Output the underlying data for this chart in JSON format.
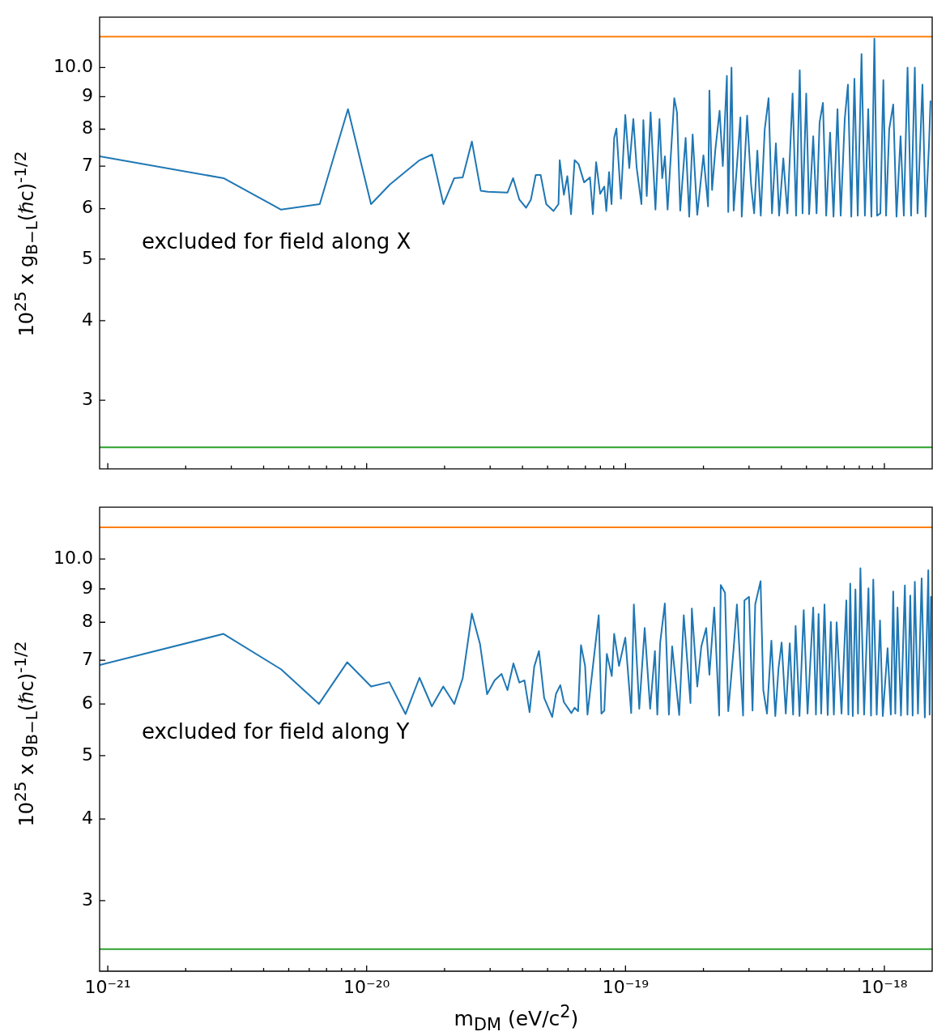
{
  "chart_data": [
    {
      "type": "line",
      "ylabel": "10$^{25}$ x g$_{B−L}$(ℏc)$^{-1/2}$",
      "annotations": [
        "excluded for field along X"
      ],
      "log": "xy",
      "tick_labels": "y",
      "xlim": [
        9.3e-22,
        1.53e-18
      ],
      "ylim": [
        2.34,
        12.0
      ],
      "xticks": [
        {
          "value": 1e-21,
          "label": null
        },
        {
          "value": 2e-21,
          "label": null
        },
        {
          "value": 3e-21,
          "label": null
        },
        {
          "value": 4e-21,
          "label": null
        },
        {
          "value": 5e-21,
          "label": null
        },
        {
          "value": 6e-21,
          "label": null
        },
        {
          "value": 7e-21,
          "label": null
        },
        {
          "value": 8e-21,
          "label": null
        },
        {
          "value": 9e-21,
          "label": null
        },
        {
          "value": 1e-20,
          "label": null
        },
        {
          "value": 2e-20,
          "label": null
        },
        {
          "value": 3e-20,
          "label": null
        },
        {
          "value": 4e-20,
          "label": null
        },
        {
          "value": 5e-20,
          "label": null
        },
        {
          "value": 6e-20,
          "label": null
        },
        {
          "value": 7e-20,
          "label": null
        },
        {
          "value": 8e-20,
          "label": null
        },
        {
          "value": 9e-20,
          "label": null
        },
        {
          "value": 1e-19,
          "label": null
        },
        {
          "value": 2e-19,
          "label": null
        },
        {
          "value": 3e-19,
          "label": null
        },
        {
          "value": 4e-19,
          "label": null
        },
        {
          "value": 5e-19,
          "label": null
        },
        {
          "value": 6e-19,
          "label": null
        },
        {
          "value": 7e-19,
          "label": null
        },
        {
          "value": 8e-19,
          "label": null
        },
        {
          "value": 9e-19,
          "label": null
        },
        {
          "value": 1e-18,
          "label": null
        }
      ],
      "yticks": [
        3,
        4,
        5,
        6,
        7,
        8,
        9,
        {
          "value": 10,
          "label": "10.0"
        }
      ],
      "ref_lines": [
        {
          "axis": "y",
          "value": 11.18,
          "color": "#ff7f0e"
        },
        {
          "axis": "y",
          "value": 2.53,
          "color": "#2ca02c"
        }
      ],
      "series": [
        {
          "color": "#1f77b4",
          "x": [
            9.3e-22,
            2.8e-21,
            4.67e-21,
            6.59e-21,
            8.47e-21,
            1.04e-20,
            1.23e-20,
            1.6e-20,
            1.79e-20,
            1.98e-20,
            2.18e-20,
            2.35e-20,
            2.55e-20,
            2.76e-20,
            2.94e-20,
            3.5e-20,
            3.68e-20,
            3.89e-20,
            4.13e-20,
            4.31e-20,
            4.5e-20,
            4.7e-20,
            4.94e-20,
            5.27e-20,
            5.51e-20,
            5.57e-20,
            5.78e-20,
            5.96e-20,
            6.16e-20,
            6.36e-20,
            6.59e-20,
            6.92e-20,
            7.29e-20,
            7.48e-20,
            7.7e-20,
            7.98e-20,
            8.28e-20,
            8.43e-20,
            8.64e-20,
            8.83e-20,
            9.04e-20,
            9.22e-20,
            9.6e-20,
            9.98e-20,
            1.034e-19,
            1.072e-19,
            1.104e-19,
            1.152e-19,
            1.172e-19,
            1.208e-19,
            1.25e-19,
            1.305e-19,
            1.353e-19,
            1.386e-19,
            1.42e-19,
            1.454e-19,
            1.543e-19,
            1.581e-19,
            1.627e-19,
            1.707e-19,
            1.762e-19,
            1.817e-19,
            1.893e-19,
            2e-19,
            2.084e-19,
            2.109e-19,
            2.16e-19,
            2.223e-19,
            2.309e-19,
            2.376e-19,
            2.464e-19,
            2.494e-19,
            2.567e-19,
            2.617e-19,
            2.779e-19,
            2.812e-19,
            2.95e-19,
            3.058e-19,
            3.14e-19,
            3.23e-19,
            3.33e-19,
            3.45e-19,
            3.57e-19,
            3.68e-19,
            3.81e-19,
            3.92e-19,
            4.07e-19,
            4.22e-19,
            4.42e-19,
            4.56e-19,
            4.71e-19,
            4.83e-19,
            4.99e-19,
            5.12e-19,
            5.31e-19,
            5.47e-19,
            5.62e-19,
            5.79e-19,
            5.96e-19,
            6.17e-19,
            6.36e-19,
            6.59e-19,
            6.78e-19,
            7.03e-19,
            7.23e-19,
            7.45e-19,
            7.66e-19,
            7.89e-19,
            8.16e-19,
            8.41e-19,
            8.66e-19,
            8.91e-19,
            9.15e-19,
            9.37e-19,
            9.65e-19,
            9.91e-19,
            1.015e-18,
            1.044e-18,
            1.082e-18,
            1.114e-18,
            1.155e-18,
            1.189e-18,
            1.229e-18,
            1.268e-18,
            1.311e-18,
            1.343e-18,
            1.403e-18,
            1.443e-18,
            1.486e-18,
            1.507e-18
          ],
          "values": [
            7.25,
            6.7,
            5.98,
            6.1,
            8.6,
            6.1,
            6.55,
            7.15,
            7.3,
            6.1,
            6.7,
            6.72,
            7.65,
            6.4,
            6.38,
            6.36,
            6.7,
            6.2,
            6.02,
            6.2,
            6.78,
            6.78,
            6.1,
            5.95,
            6.1,
            7.15,
            6.31,
            6.75,
            5.88,
            7.15,
            7.05,
            6.6,
            6.72,
            5.88,
            7.1,
            6.33,
            6.5,
            5.95,
            6.85,
            6.1,
            7.75,
            8.02,
            6.22,
            8.42,
            6.95,
            8.3,
            6.97,
            6.1,
            8.27,
            6.28,
            8.5,
            5.98,
            8.3,
            6.7,
            7.25,
            5.98,
            8.95,
            8.5,
            5.96,
            7.75,
            5.83,
            7.85,
            5.87,
            7.28,
            6.05,
            9.2,
            6.42,
            7.42,
            8.55,
            7.0,
            9.7,
            5.93,
            10.0,
            5.96,
            8.35,
            5.83,
            8.4,
            6.52,
            5.9,
            7.4,
            5.85,
            8.0,
            8.95,
            5.9,
            7.6,
            5.85,
            7.2,
            5.9,
            9.1,
            5.85,
            9.9,
            5.9,
            9.1,
            5.88,
            7.8,
            5.9,
            8.2,
            8.8,
            5.85,
            7.9,
            5.83,
            8.6,
            5.85,
            8.3,
            9.4,
            5.83,
            9.6,
            5.85,
            10.5,
            5.85,
            8.6,
            5.83,
            11.1,
            5.85,
            5.9,
            9.55,
            5.85,
            8.0,
            8.75,
            5.83,
            7.8,
            5.85,
            10.0,
            5.85,
            10.0,
            5.9,
            9.4,
            5.83,
            7.5,
            8.85
          ]
        }
      ]
    },
    {
      "type": "line",
      "ylabel": "10$^{25}$ x g$_{B−L}$(ℏc)$^{-1/2}$",
      "xlabel": "m$_{DM}$ (eV/c$^{2}$)",
      "annotations": [
        "excluded for field along Y"
      ],
      "log": "xy",
      "xlim": [
        9.3e-22,
        1.53e-18
      ],
      "ylim": [
        2.34,
        12.0
      ],
      "xticks": [
        {
          "value": 1e-21,
          "label": "10⁻²¹"
        },
        {
          "value": 2e-21,
          "label": null
        },
        {
          "value": 3e-21,
          "label": null
        },
        {
          "value": 4e-21,
          "label": null
        },
        {
          "value": 5e-21,
          "label": null
        },
        {
          "value": 6e-21,
          "label": null
        },
        {
          "value": 7e-21,
          "label": null
        },
        {
          "value": 8e-21,
          "label": null
        },
        {
          "value": 9e-21,
          "label": null
        },
        {
          "value": 1e-20,
          "label": "10⁻²⁰"
        },
        {
          "value": 2e-20,
          "label": null
        },
        {
          "value": 3e-20,
          "label": null
        },
        {
          "value": 4e-20,
          "label": null
        },
        {
          "value": 5e-20,
          "label": null
        },
        {
          "value": 6e-20,
          "label": null
        },
        {
          "value": 7e-20,
          "label": null
        },
        {
          "value": 8e-20,
          "label": null
        },
        {
          "value": 9e-20,
          "label": null
        },
        {
          "value": 1e-19,
          "label": "10⁻¹⁹"
        },
        {
          "value": 2e-19,
          "label": null
        },
        {
          "value": 3e-19,
          "label": null
        },
        {
          "value": 4e-19,
          "label": null
        },
        {
          "value": 5e-19,
          "label": null
        },
        {
          "value": 6e-19,
          "label": null
        },
        {
          "value": 7e-19,
          "label": null
        },
        {
          "value": 8e-19,
          "label": null
        },
        {
          "value": 9e-19,
          "label": null
        },
        {
          "value": 1e-18,
          "label": "10⁻¹⁸"
        }
      ],
      "yticks": [
        3,
        4,
        5,
        6,
        7,
        8,
        9,
        {
          "value": 10,
          "label": "10.0"
        }
      ],
      "ref_lines": [
        {
          "axis": "y",
          "value": 11.18,
          "color": "#ff7f0e"
        },
        {
          "axis": "y",
          "value": 2.53,
          "color": "#2ca02c"
        }
      ],
      "series": [
        {
          "color": "#1f77b4",
          "x": [
            9.3e-22,
            2.8e-21,
            4.67e-21,
            6.54e-21,
            8.41e-21,
            1.04e-20,
            1.223e-20,
            1.413e-20,
            1.6e-20,
            1.786e-20,
            1.977e-20,
            2.18e-20,
            2.35e-20,
            2.55e-20,
            2.74e-20,
            2.92e-20,
            3.12e-20,
            3.32e-20,
            3.5e-20,
            3.69e-20,
            3.89e-20,
            4.07e-20,
            4.26e-20,
            4.44e-20,
            4.63e-20,
            4.85e-20,
            5.21e-20,
            5.39e-20,
            5.6e-20,
            5.78e-20,
            6.18e-20,
            6.36e-20,
            6.56e-20,
            6.73e-20,
            6.98e-20,
            7.13e-20,
            7.43e-20,
            7.88e-20,
            8.07e-20,
            8.28e-20,
            8.47e-20,
            8.85e-20,
            9.04e-20,
            9.44e-20,
            9.98e-20,
            1.052e-19,
            1.077e-19,
            1.13e-19,
            1.186e-19,
            1.245e-19,
            1.299e-19,
            1.327e-19,
            1.361e-19,
            1.419e-19,
            1.471e-19,
            1.514e-19,
            1.612e-19,
            1.679e-19,
            1.782e-19,
            1.804e-19,
            1.893e-19,
            1.963e-19,
            2.05e-19,
            2.109e-19,
            2.202e-19,
            2.3e-19,
            2.333e-19,
            2.423e-19,
            2.494e-19,
            2.617e-19,
            2.694e-19,
            2.846e-19,
            2.88e-19,
            3e-19,
            3.095e-19,
            3.17e-19,
            3.325e-19,
            3.406e-19,
            3.52e-19,
            3.66e-19,
            3.79e-19,
            3.9e-19,
            4.01e-19,
            4.16e-19,
            4.31e-19,
            4.44e-19,
            4.54e-19,
            4.7e-19,
            4.88e-19,
            5.05e-19,
            5.31e-19,
            5.44e-19,
            5.57e-19,
            5.7e-19,
            5.87e-19,
            6.04e-19,
            6.21e-19,
            6.38e-19,
            6.54e-19,
            6.83e-19,
            7.13e-19,
            7.26e-19,
            7.38e-19,
            7.55e-19,
            7.73e-19,
            7.91e-19,
            8.08e-19,
            8.35e-19,
            8.68e-19,
            8.88e-19,
            9.06e-19,
            9.34e-19,
            9.62e-19,
            9.86e-19,
            1.029e-18,
            1.059e-18,
            1.082e-18,
            1.102e-18,
            1.124e-18,
            1.159e-18,
            1.2e-18,
            1.228e-18,
            1.259e-18,
            1.286e-18,
            1.311e-18,
            1.348e-18,
            1.393e-18,
            1.433e-18,
            1.478e-18,
            1.496e-18,
            1.514e-18
          ],
          "values": [
            6.88,
            7.68,
            6.78,
            6.0,
            6.95,
            6.38,
            6.48,
            5.79,
            6.58,
            5.95,
            6.38,
            6.0,
            6.57,
            8.25,
            7.42,
            6.21,
            6.52,
            6.67,
            6.3,
            6.92,
            6.47,
            6.52,
            5.83,
            6.84,
            7.23,
            6.13,
            5.73,
            6.22,
            6.41,
            6.04,
            5.81,
            5.92,
            5.85,
            7.38,
            6.86,
            5.78,
            6.68,
            8.2,
            5.8,
            5.86,
            7.16,
            6.62,
            7.68,
            6.86,
            7.58,
            5.81,
            8.52,
            5.9,
            7.84,
            5.9,
            7.23,
            5.78,
            7.44,
            8.55,
            5.78,
            7.35,
            5.77,
            8.2,
            6.02,
            8.4,
            6.38,
            7.35,
            7.84,
            6.65,
            8.43,
            5.76,
            9.12,
            8.88,
            5.85,
            7.3,
            8.52,
            5.76,
            8.64,
            8.75,
            5.86,
            8.52,
            9.25,
            6.3,
            5.8,
            7.5,
            5.75,
            6.8,
            7.45,
            5.8,
            7.43,
            5.78,
            7.9,
            5.75,
            8.35,
            5.8,
            8.43,
            5.78,
            8.24,
            5.8,
            8.52,
            5.77,
            8.01,
            5.78,
            8.0,
            5.8,
            8.64,
            5.78,
            9.17,
            5.75,
            8.98,
            5.8,
            9.68,
            5.78,
            9.02,
            5.76,
            9.3,
            5.78,
            8.05,
            5.75,
            7.3,
            5.78,
            8.92,
            5.8,
            8.43,
            5.76,
            9.11,
            5.78,
            8.79,
            5.76,
            9.23,
            5.8,
            9.34,
            5.72,
            9.61,
            5.78,
            8.75
          ]
        }
      ]
    }
  ]
}
